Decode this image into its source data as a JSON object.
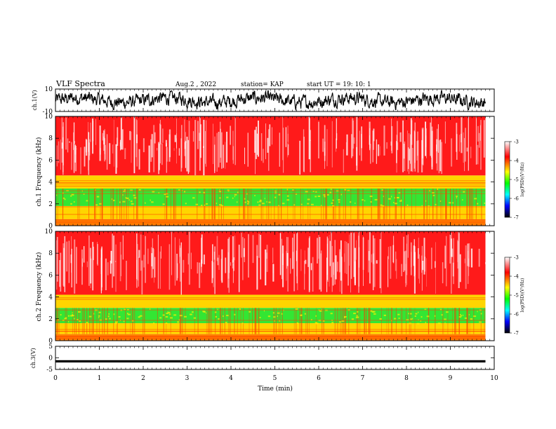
{
  "header": {
    "title": "VLF Spectra",
    "date": "Aug.2 , 2022",
    "station": "station= KAP",
    "start": "start UT = 19: 10: 1"
  },
  "chart_data": [
    {
      "type": "line",
      "name": "ch1-waveform",
      "ylabel": "ch.1(V)",
      "ylim": [
        -10,
        10
      ],
      "ytick_labels": [
        "10",
        "-10"
      ],
      "xlim": [
        0,
        10
      ],
      "note_values": "noisy waveform fluctuating roughly between -8 and 8 V"
    },
    {
      "type": "heatmap",
      "name": "ch1-spectrogram",
      "ylabel": "ch.1 Frequency (kHz)",
      "ylim": [
        0,
        10
      ],
      "ytick_labels": [
        "0",
        "2",
        "4",
        "6",
        "8",
        "10"
      ],
      "xlim": [
        0,
        10
      ],
      "colorbar": {
        "label": "log(PSD)(V²/Hz)",
        "ticks": [
          "-3",
          "-4",
          "-5",
          "-6",
          "-7"
        ],
        "colors": [
          "#ffffff",
          "#ff0000",
          "#ffff00",
          "#00ff00",
          "#00ffff",
          "#0000ff",
          "#000000"
        ]
      },
      "bands": [
        {
          "from_khz": 0,
          "to_khz": 0.6,
          "level": "orange"
        },
        {
          "from_khz": 0.6,
          "to_khz": 1.8,
          "level": "yellow"
        },
        {
          "from_khz": 1.8,
          "to_khz": 3.4,
          "level": "green"
        },
        {
          "from_khz": 3.4,
          "to_khz": 4.6,
          "level": "yellow"
        },
        {
          "from_khz": 4.6,
          "to_khz": 10,
          "level": "red"
        }
      ]
    },
    {
      "type": "heatmap",
      "name": "ch2-spectrogram",
      "ylabel": "ch.2 Frequency (kHz)",
      "ylim": [
        0,
        10
      ],
      "ytick_labels": [
        "0",
        "2",
        "4",
        "6",
        "8",
        "10"
      ],
      "xlim": [
        0,
        10
      ],
      "colorbar": {
        "label": "log(PSD)(V²/Hz)",
        "ticks": [
          "-3",
          "-4",
          "-5",
          "-6",
          "-7"
        ],
        "colors": [
          "#ffffff",
          "#ff0000",
          "#ffff00",
          "#00ff00",
          "#00ffff",
          "#0000ff",
          "#000000"
        ]
      },
      "bands": [
        {
          "from_khz": 0,
          "to_khz": 0.6,
          "level": "orange"
        },
        {
          "from_khz": 0.6,
          "to_khz": 1.6,
          "level": "yellow"
        },
        {
          "from_khz": 1.6,
          "to_khz": 3.0,
          "level": "green"
        },
        {
          "from_khz": 3.0,
          "to_khz": 4.2,
          "level": "yellow"
        },
        {
          "from_khz": 4.2,
          "to_khz": 10,
          "level": "red"
        }
      ]
    },
    {
      "type": "line",
      "name": "ch3-waveform",
      "ylabel": "ch.3(V)",
      "ylim": [
        -5,
        5
      ],
      "ytick_labels": [
        "5",
        "0",
        "-5"
      ],
      "xlim": [
        0,
        10
      ],
      "xlabel": "Time (min)",
      "xtick_labels": [
        "0",
        "1",
        "2",
        "3",
        "4",
        "5",
        "6",
        "7",
        "8",
        "9",
        "10"
      ],
      "note_values": "thick band near -1.5 V"
    }
  ]
}
